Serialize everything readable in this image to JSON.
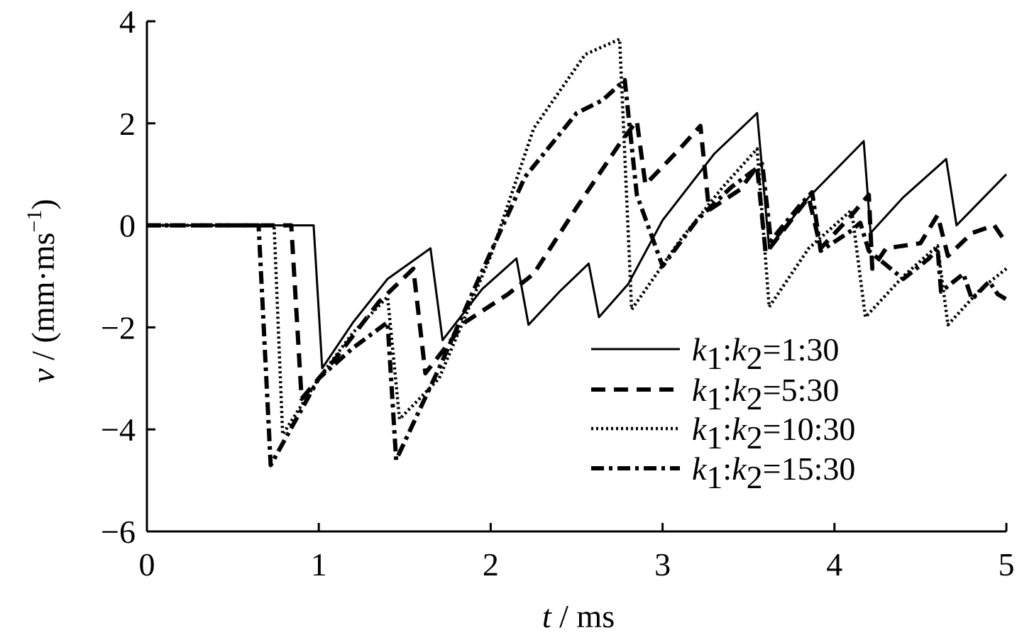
{
  "chart_data": {
    "type": "line",
    "title": "",
    "xlabel": {
      "var": "t",
      "rest": " / ms"
    },
    "ylabel": {
      "var": "v",
      "rest": " / (mm·ms",
      "sup": "−1",
      "close": ")"
    },
    "xlim": [
      0,
      5
    ],
    "ylim": [
      -6,
      4
    ],
    "x_ticks": [
      0,
      1,
      2,
      3,
      4,
      5
    ],
    "x_tick_labels": [
      "0",
      "1",
      "2",
      "3",
      "4",
      "5"
    ],
    "y_ticks": [
      -6,
      -4,
      -2,
      0,
      2,
      4
    ],
    "y_tick_labels": [
      "−6",
      "−4",
      "−2",
      "0",
      "2",
      "4"
    ],
    "grid": false,
    "legend_position": "lower-right",
    "series": [
      {
        "name": "k1:k2=1:30",
        "label": {
          "k": "k",
          "s1": "1",
          "colon": ":",
          "s2": "2",
          "ratio": "=1:30"
        },
        "style": "solid",
        "points": [
          [
            0,
            0
          ],
          [
            0.97,
            0
          ],
          [
            1.02,
            -2.8
          ],
          [
            1.2,
            -1.9
          ],
          [
            1.4,
            -1.05
          ],
          [
            1.65,
            -0.45
          ],
          [
            1.72,
            -2.25
          ],
          [
            1.95,
            -1.25
          ],
          [
            2.15,
            -0.65
          ],
          [
            2.22,
            -1.95
          ],
          [
            2.4,
            -1.3
          ],
          [
            2.57,
            -0.75
          ],
          [
            2.63,
            -1.8
          ],
          [
            2.8,
            -1.15
          ],
          [
            3.0,
            0.1
          ],
          [
            3.3,
            1.4
          ],
          [
            3.55,
            2.2
          ],
          [
            3.62,
            -0.45
          ],
          [
            3.85,
            0.55
          ],
          [
            4.17,
            1.65
          ],
          [
            4.21,
            -0.15
          ],
          [
            4.4,
            0.55
          ],
          [
            4.65,
            1.3
          ],
          [
            4.71,
            0.0
          ],
          [
            5.0,
            1.0
          ]
        ]
      },
      {
        "name": "k1:k2=5:30",
        "label": {
          "k": "k",
          "s1": "1",
          "colon": ":",
          "s2": "2",
          "ratio": "=5:30"
        },
        "style": "dashed",
        "points": [
          [
            0,
            0
          ],
          [
            0.84,
            0
          ],
          [
            0.9,
            -3.4
          ],
          [
            1.1,
            -2.6
          ],
          [
            1.35,
            -1.5
          ],
          [
            1.55,
            -0.85
          ],
          [
            1.62,
            -2.9
          ],
          [
            1.85,
            -1.9
          ],
          [
            2.1,
            -1.35
          ],
          [
            2.25,
            -0.95
          ],
          [
            2.5,
            0.35
          ],
          [
            2.75,
            1.6
          ],
          [
            2.85,
            2.05
          ],
          [
            2.9,
            0.8
          ],
          [
            3.1,
            1.5
          ],
          [
            3.22,
            1.95
          ],
          [
            3.27,
            0.3
          ],
          [
            3.45,
            0.7
          ],
          [
            3.55,
            1.15
          ],
          [
            3.6,
            -0.55
          ],
          [
            3.85,
            0.55
          ],
          [
            3.92,
            -0.45
          ],
          [
            4.1,
            0.2
          ],
          [
            4.2,
            0.6
          ],
          [
            4.22,
            -0.85
          ],
          [
            4.3,
            -0.45
          ],
          [
            4.5,
            -0.35
          ],
          [
            4.6,
            0.2
          ],
          [
            4.66,
            -0.6
          ],
          [
            4.8,
            -0.15
          ],
          [
            4.93,
            0.0
          ],
          [
            5.0,
            -0.35
          ]
        ]
      },
      {
        "name": "k1:k2=10:30",
        "label": {
          "k": "k",
          "s1": "1",
          "colon": ":",
          "s2": "2",
          "ratio": "=10:30"
        },
        "style": "dotted",
        "points": [
          [
            0,
            0
          ],
          [
            0.74,
            0
          ],
          [
            0.79,
            -4.1
          ],
          [
            1.0,
            -3.0
          ],
          [
            1.2,
            -2.1
          ],
          [
            1.4,
            -1.4
          ],
          [
            1.47,
            -3.8
          ],
          [
            1.7,
            -3.0
          ],
          [
            2.0,
            -0.6
          ],
          [
            2.25,
            1.9
          ],
          [
            2.55,
            3.35
          ],
          [
            2.75,
            3.65
          ],
          [
            2.82,
            -1.65
          ],
          [
            3.1,
            -0.3
          ],
          [
            3.35,
            0.75
          ],
          [
            3.55,
            1.5
          ],
          [
            3.62,
            -1.6
          ],
          [
            3.85,
            -0.45
          ],
          [
            4.1,
            0.3
          ],
          [
            4.18,
            -1.8
          ],
          [
            4.4,
            -1.0
          ],
          [
            4.6,
            -0.4
          ],
          [
            4.66,
            -1.95
          ],
          [
            4.85,
            -1.25
          ],
          [
            5.0,
            -0.85
          ]
        ]
      },
      {
        "name": "k1:k2=15:30",
        "label": {
          "k": "k",
          "s1": "1",
          "colon": ":",
          "s2": "2",
          "ratio": "=15:30"
        },
        "style": "dashdot",
        "points": [
          [
            0,
            0
          ],
          [
            0.65,
            0
          ],
          [
            0.72,
            -4.7
          ],
          [
            1.0,
            -3.0
          ],
          [
            1.2,
            -2.4
          ],
          [
            1.4,
            -1.9
          ],
          [
            1.45,
            -4.6
          ],
          [
            1.7,
            -2.8
          ],
          [
            1.95,
            -0.9
          ],
          [
            2.2,
            0.95
          ],
          [
            2.5,
            2.2
          ],
          [
            2.65,
            2.45
          ],
          [
            2.78,
            2.85
          ],
          [
            2.85,
            0.6
          ],
          [
            3.0,
            -0.8
          ],
          [
            3.2,
            0.1
          ],
          [
            3.4,
            0.75
          ],
          [
            3.58,
            1.2
          ],
          [
            3.63,
            -0.3
          ],
          [
            3.8,
            0.4
          ],
          [
            3.87,
            0.65
          ],
          [
            3.92,
            -0.5
          ],
          [
            4.1,
            -0.1
          ],
          [
            4.15,
            0.05
          ],
          [
            4.2,
            -0.5
          ],
          [
            4.4,
            -1.05
          ],
          [
            4.55,
            -0.65
          ],
          [
            4.6,
            -0.45
          ],
          [
            4.62,
            -1.3
          ],
          [
            4.75,
            -0.95
          ],
          [
            4.8,
            -1.45
          ],
          [
            4.9,
            -1.1
          ],
          [
            4.95,
            -1.35
          ],
          [
            5.0,
            -1.45
          ]
        ]
      }
    ]
  }
}
